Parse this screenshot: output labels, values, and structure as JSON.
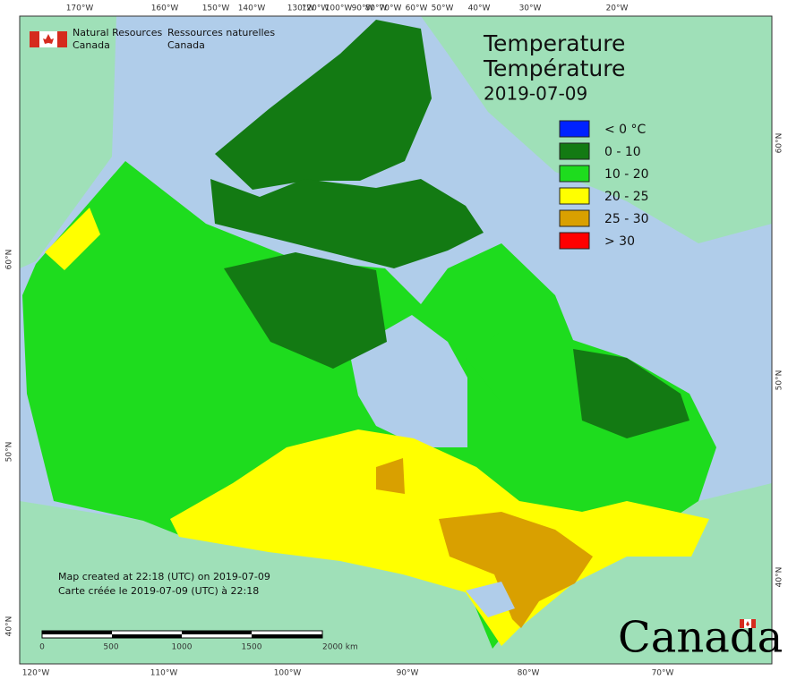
{
  "agency": {
    "en": [
      "Natural Resources",
      "Canada"
    ],
    "fr": [
      "Ressources naturelles",
      "Canada"
    ]
  },
  "title": [
    "Temperature",
    "Température",
    "2019-07-09"
  ],
  "legend": [
    {
      "label": "< 0 °C",
      "color": "#0022ff"
    },
    {
      "label": "0 - 10",
      "color": "#137a13"
    },
    {
      "label": "10 - 20",
      "color": "#1edc1e"
    },
    {
      "label": "20 - 25",
      "color": "#ffff00"
    },
    {
      "label": "25 - 30",
      "color": "#d9a000"
    },
    {
      "label": "> 30",
      "color": "#ff0000"
    }
  ],
  "top_axis": [
    "170°W",
    "160°W",
    "150°W",
    "140°W",
    "130°W",
    "120°W",
    "100°W",
    "90°W",
    "80°W",
    "70°W",
    "60°W",
    "50°W",
    "40°W",
    "30°W",
    "20°W"
  ],
  "bottom_axis": [
    "120°W",
    "110°W",
    "100°W",
    "90°W",
    "80°W",
    "70°W"
  ],
  "left_axis": [
    "60°N",
    "50°N",
    "40°N"
  ],
  "right_axis": [
    "60°N",
    "50°N",
    "40°N"
  ],
  "scale_labels": [
    "0",
    "500",
    "1000",
    "1500",
    "2000 km"
  ],
  "footer": [
    "Map created at 22:18 (UTC) on 2019-07-09",
    "Carte créée le 2019-07-09 (UTC) à 22:18"
  ],
  "wordmark": "Canada"
}
